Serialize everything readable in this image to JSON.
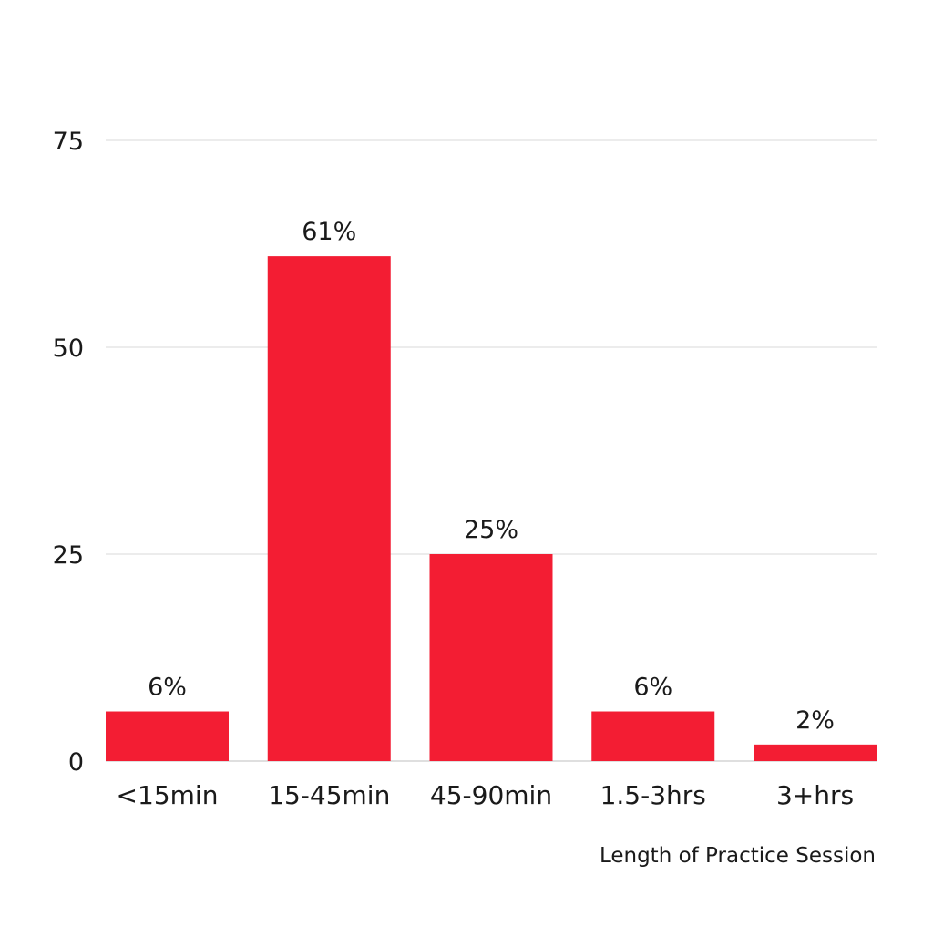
{
  "chart_data": {
    "type": "bar",
    "title": "",
    "xlabel": "Length of Practice Session",
    "ylabel": "",
    "categories": [
      "<15min",
      "15-45min",
      "45-90min",
      "1.5-3hrs",
      "3+hrs"
    ],
    "values": [
      6,
      61,
      25,
      6,
      2
    ],
    "data_labels": [
      "6%",
      "61%",
      "25%",
      "6%",
      "2%"
    ],
    "yticks": [
      0,
      25,
      50,
      75
    ],
    "ylim": [
      0,
      75
    ],
    "grid": true,
    "legend": "none",
    "bar_color": "#f31d33",
    "grid_color": "#d9d9d9",
    "axis_color": "#bfbfbf"
  }
}
